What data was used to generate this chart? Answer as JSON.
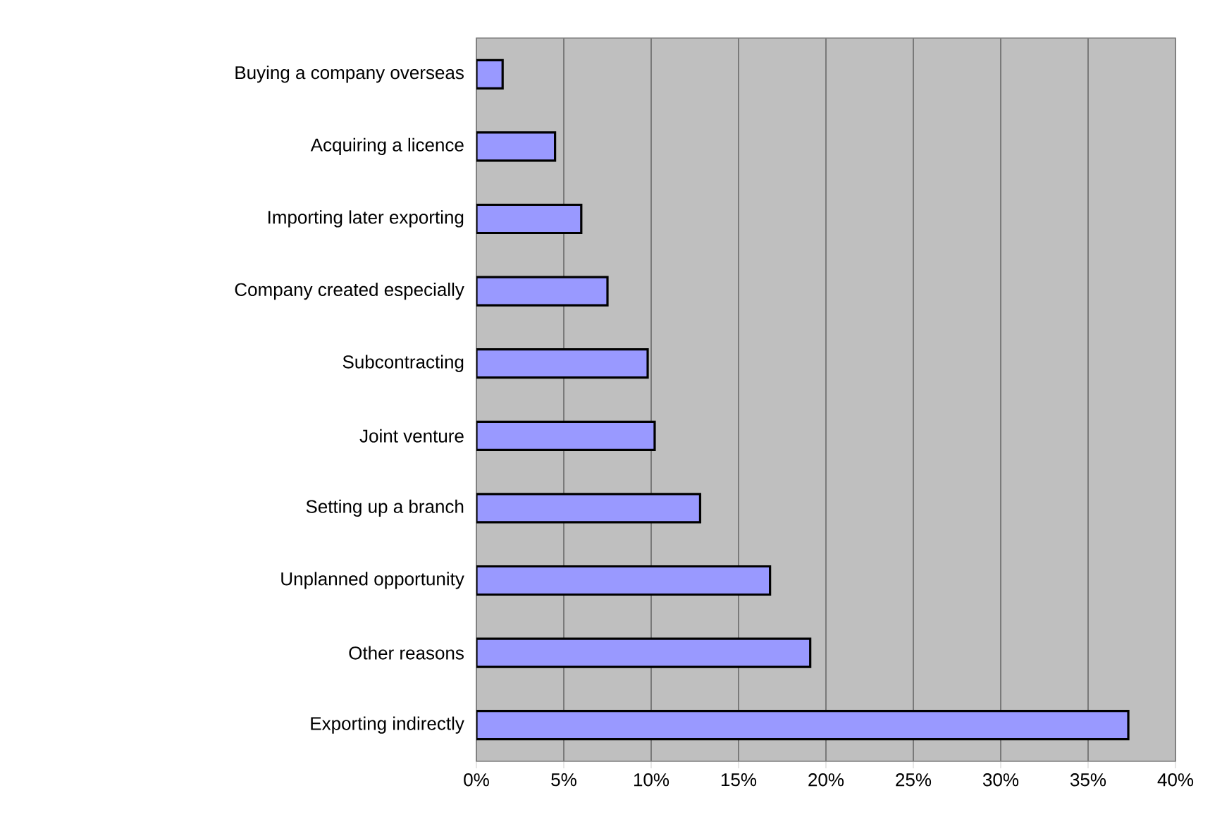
{
  "chart_data": {
    "type": "bar",
    "orientation": "horizontal",
    "categories": [
      "Buying a company overseas",
      "Acquiring a licence",
      "Importing later exporting",
      "Company created especially",
      "Subcontracting",
      "Joint venture",
      "Setting up a branch",
      "Unplanned opportunity",
      "Other reasons",
      "Exporting indirectly"
    ],
    "values": [
      1.5,
      4.5,
      6.0,
      7.5,
      9.8,
      10.2,
      12.8,
      16.8,
      19.1,
      37.3
    ],
    "color": "#9999ff",
    "xlim": [
      0,
      40
    ],
    "xticks": [
      {
        "value": 0,
        "label": "0%"
      },
      {
        "value": 5,
        "label": "5%"
      },
      {
        "value": 10,
        "label": "10%"
      },
      {
        "value": 15,
        "label": "15%"
      },
      {
        "value": 20,
        "label": "20%"
      },
      {
        "value": 25,
        "label": "25%"
      },
      {
        "value": 30,
        "label": "30%"
      },
      {
        "value": 35,
        "label": "35%"
      },
      {
        "value": 40,
        "label": "40%"
      }
    ],
    "grid": "x"
  }
}
